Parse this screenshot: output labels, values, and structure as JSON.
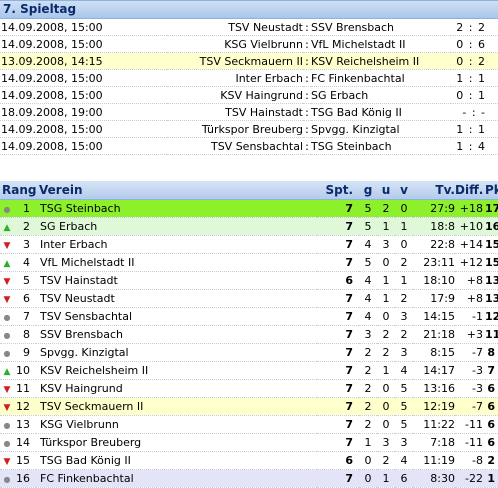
{
  "matchday": {
    "title": "7. Spieltag",
    "matches": [
      {
        "date": "14.09.2008, 15:00",
        "home": "TSV Neustadt",
        "away": "SSV Brensbach",
        "result": "2 : 2",
        "highlight": false
      },
      {
        "date": "14.09.2008, 15:00",
        "home": "KSG Vielbrunn",
        "away": "VfL Michelstadt II",
        "result": "0 : 6",
        "highlight": false
      },
      {
        "date": "13.09.2008, 14:15",
        "home": "TSV Seckmauern II",
        "away": "KSV Reichelsheim II",
        "result": "0 : 2",
        "highlight": true
      },
      {
        "date": "14.09.2008, 15:00",
        "home": "Inter Erbach",
        "away": "FC Finkenbachtal",
        "result": "1 : 1",
        "highlight": false
      },
      {
        "date": "14.09.2008, 15:00",
        "home": "KSV Haingrund",
        "away": "SG Erbach",
        "result": "0 : 1",
        "highlight": false
      },
      {
        "date": "18.09.2008, 19:00",
        "home": "TSV Hainstadt",
        "away": "TSG Bad König II",
        "result": "- : -",
        "highlight": false
      },
      {
        "date": "14.09.2008, 15:00",
        "home": "Türkspor Breuberg",
        "away": "Spvgg. Kinzigtal",
        "result": "1 : 1",
        "highlight": false
      },
      {
        "date": "14.09.2008, 15:00",
        "home": "TSV Sensbachtal",
        "away": "TSG Steinbach",
        "result": "1 : 4",
        "highlight": false
      }
    ]
  },
  "standings": {
    "headers": {
      "rang": "Rang",
      "verein": "Verein",
      "spt": "Spt.",
      "g": "g",
      "u": "u",
      "v": "v",
      "tv": "Tv.",
      "diff": "Diff.",
      "pkt": "Pkt."
    },
    "rows": [
      {
        "rank": "1",
        "trend": "same",
        "team": "TSG Steinbach",
        "spt": "7",
        "g": "5",
        "u": "2",
        "v": "0",
        "tv": "27:9",
        "diff": "+18",
        "pkt": "17",
        "style": "leader"
      },
      {
        "rank": "2",
        "trend": "up",
        "team": "SG Erbach",
        "spt": "7",
        "g": "5",
        "u": "1",
        "v": "1",
        "tv": "18:8",
        "diff": "+10",
        "pkt": "16",
        "style": "promo"
      },
      {
        "rank": "3",
        "trend": "down",
        "team": "Inter Erbach",
        "spt": "7",
        "g": "4",
        "u": "3",
        "v": "0",
        "tv": "22:8",
        "diff": "+14",
        "pkt": "15",
        "style": ""
      },
      {
        "rank": "4",
        "trend": "up",
        "team": "VfL Michelstadt II",
        "spt": "7",
        "g": "5",
        "u": "0",
        "v": "2",
        "tv": "23:11",
        "diff": "+12",
        "pkt": "15",
        "style": ""
      },
      {
        "rank": "5",
        "trend": "down",
        "team": "TSV Hainstadt",
        "spt": "6",
        "g": "4",
        "u": "1",
        "v": "1",
        "tv": "18:10",
        "diff": "+8",
        "pkt": "13",
        "style": ""
      },
      {
        "rank": "6",
        "trend": "down",
        "team": "TSV Neustadt",
        "spt": "7",
        "g": "4",
        "u": "1",
        "v": "2",
        "tv": "17:9",
        "diff": "+8",
        "pkt": "13",
        "style": ""
      },
      {
        "rank": "7",
        "trend": "same",
        "team": "TSV Sensbachtal",
        "spt": "7",
        "g": "4",
        "u": "0",
        "v": "3",
        "tv": "14:15",
        "diff": "-1",
        "pkt": "12",
        "style": ""
      },
      {
        "rank": "8",
        "trend": "same",
        "team": "SSV Brensbach",
        "spt": "7",
        "g": "3",
        "u": "2",
        "v": "2",
        "tv": "21:18",
        "diff": "+3",
        "pkt": "11",
        "style": ""
      },
      {
        "rank": "9",
        "trend": "same",
        "team": "Spvgg. Kinzigtal",
        "spt": "7",
        "g": "2",
        "u": "2",
        "v": "3",
        "tv": "8:15",
        "diff": "-7",
        "pkt": "8",
        "style": ""
      },
      {
        "rank": "10",
        "trend": "up",
        "team": "KSV Reichelsheim II",
        "spt": "7",
        "g": "2",
        "u": "1",
        "v": "4",
        "tv": "14:17",
        "diff": "-3",
        "pkt": "7",
        "style": ""
      },
      {
        "rank": "11",
        "trend": "down",
        "team": "KSV Haingrund",
        "spt": "7",
        "g": "2",
        "u": "0",
        "v": "5",
        "tv": "13:16",
        "diff": "-3",
        "pkt": "6",
        "style": ""
      },
      {
        "rank": "12",
        "trend": "down",
        "team": "TSV Seckmauern II",
        "spt": "7",
        "g": "2",
        "u": "0",
        "v": "5",
        "tv": "12:19",
        "diff": "-7",
        "pkt": "6",
        "style": "hl"
      },
      {
        "rank": "13",
        "trend": "same",
        "team": "KSG Vielbrunn",
        "spt": "7",
        "g": "2",
        "u": "0",
        "v": "5",
        "tv": "11:22",
        "diff": "-11",
        "pkt": "6",
        "style": ""
      },
      {
        "rank": "14",
        "trend": "same",
        "team": "Türkspor Breuberg",
        "spt": "7",
        "g": "1",
        "u": "3",
        "v": "3",
        "tv": "7:18",
        "diff": "-11",
        "pkt": "6",
        "style": ""
      },
      {
        "rank": "15",
        "trend": "down",
        "team": "TSG Bad König II",
        "spt": "6",
        "g": "0",
        "u": "2",
        "v": "4",
        "tv": "11:19",
        "diff": "-8",
        "pkt": "2",
        "style": ""
      },
      {
        "rank": "16",
        "trend": "same",
        "team": "FC Finkenbachtal",
        "spt": "7",
        "g": "0",
        "u": "1",
        "v": "6",
        "tv": "8:30",
        "diff": "-22",
        "pkt": "1",
        "style": "last"
      }
    ]
  },
  "colors": {
    "up": "#2bb02b",
    "down": "#d21e1e",
    "same": "#888888",
    "leader": "#8cf02a",
    "highlight": "#ffffcc"
  },
  "icons": {
    "up": "triangle-up-icon",
    "down": "triangle-down-icon",
    "same": "dot-icon"
  }
}
